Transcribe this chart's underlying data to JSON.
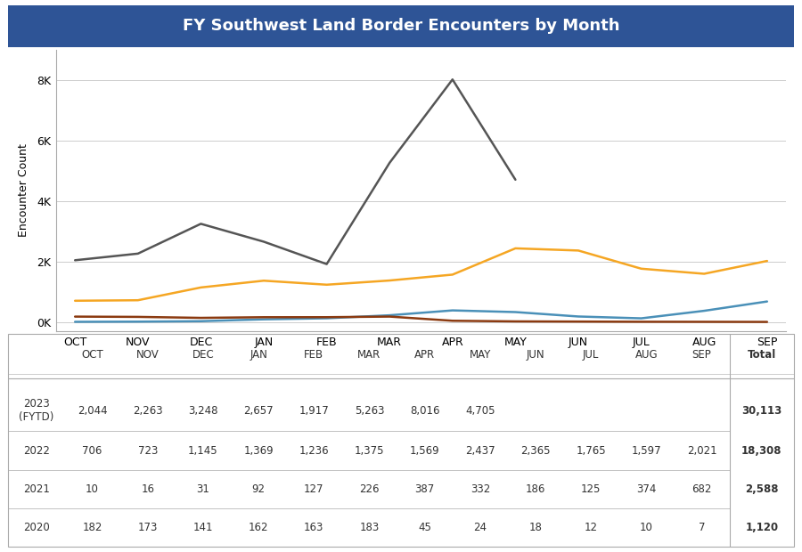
{
  "title": "FY Southwest Land Border Encounters by Month",
  "title_bg_color": "#2E5496",
  "title_text_color": "#FFFFFF",
  "months": [
    "OCT",
    "NOV",
    "DEC",
    "JAN",
    "FEB",
    "MAR",
    "APR",
    "MAY",
    "JUN",
    "JUL",
    "AUG",
    "SEP"
  ],
  "series": {
    "2023 (FYTD)": {
      "values": [
        2044,
        2263,
        3248,
        2657,
        1917,
        5263,
        8016,
        4705,
        null,
        null,
        null,
        null
      ],
      "color": "#555555",
      "linewidth": 1.8
    },
    "2022": {
      "values": [
        706,
        723,
        1145,
        1369,
        1236,
        1375,
        1569,
        2437,
        2365,
        1765,
        1597,
        2021
      ],
      "color": "#F5A623",
      "linewidth": 1.8
    },
    "2021": {
      "values": [
        10,
        16,
        31,
        92,
        127,
        226,
        387,
        332,
        186,
        125,
        374,
        682
      ],
      "color": "#4A90B8",
      "linewidth": 1.8
    },
    "2020": {
      "values": [
        182,
        173,
        141,
        162,
        163,
        183,
        45,
        24,
        18,
        12,
        10,
        7
      ],
      "color": "#8B3A10",
      "linewidth": 1.8
    }
  },
  "yticks": [
    0,
    2000,
    4000,
    6000,
    8000
  ],
  "ytick_labels": [
    "0K",
    "2K",
    "4K",
    "6K",
    "8K"
  ],
  "ylabel": "Encounter Count",
  "ylim": [
    -300,
    9000
  ],
  "table_data": {
    "rows": [
      "2023\n(FYTD)",
      "2022",
      "2021",
      "2020"
    ],
    "totals": [
      "30,113",
      "18,308",
      "2,588",
      "1,120"
    ],
    "values": [
      [
        "2,044",
        "2,263",
        "3,248",
        "2,657",
        "1,917",
        "5,263",
        "8,016",
        "4,705",
        "",
        "",
        "",
        ""
      ],
      [
        "706",
        "723",
        "1,145",
        "1,369",
        "1,236",
        "1,375",
        "1,569",
        "2,437",
        "2,365",
        "1,765",
        "1,597",
        "2,021"
      ],
      [
        "10",
        "16",
        "31",
        "92",
        "127",
        "226",
        "387",
        "332",
        "186",
        "125",
        "374",
        "682"
      ],
      [
        "182",
        "173",
        "141",
        "162",
        "163",
        "183",
        "45",
        "24",
        "18",
        "12",
        "10",
        "7"
      ]
    ]
  },
  "background_color": "#FFFFFF",
  "plot_bg_color": "#FFFFFF",
  "grid_color": "#CCCCCC",
  "border_color": "#AAAAAA"
}
